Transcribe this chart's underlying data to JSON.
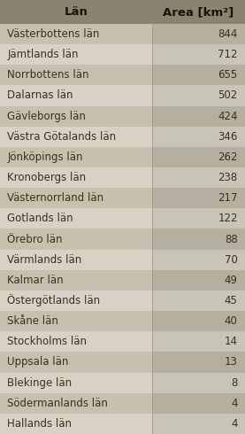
{
  "title_lan": "Län",
  "title_area": "Area [km²]",
  "rows": [
    [
      "Västerbottens län",
      844
    ],
    [
      "Jämtlands län",
      712
    ],
    [
      "Norrbottens län",
      655
    ],
    [
      "Dalarnas län",
      502
    ],
    [
      "Gävleborgs län",
      424
    ],
    [
      "Västra Götalands län",
      346
    ],
    [
      "Jönköpings län",
      262
    ],
    [
      "Kronobergs län",
      238
    ],
    [
      "Västernorrland län",
      217
    ],
    [
      "Gotlands län",
      122
    ],
    [
      "Örebro län",
      88
    ],
    [
      "Värmlands län",
      70
    ],
    [
      "Kalmar län",
      49
    ],
    [
      "Östergötlands län",
      45
    ],
    [
      "Skåne län",
      40
    ],
    [
      "Stockholms län",
      14
    ],
    [
      "Uppsala län",
      13
    ],
    [
      "Blekinge län",
      8
    ],
    [
      "Södermanlands län",
      4
    ],
    [
      "Hallands län",
      4
    ]
  ],
  "header_bg": "#8B8272",
  "row_left_odd": "#C8C0AE",
  "row_left_even": "#D8D2C6",
  "row_right_odd": "#B5AFA0",
  "row_right_even": "#C8C4B8",
  "text_color": "#3C3018",
  "header_text_color": "#1A1200",
  "font_size": 8.5,
  "header_font_size": 9.5,
  "col_split": 0.62
}
